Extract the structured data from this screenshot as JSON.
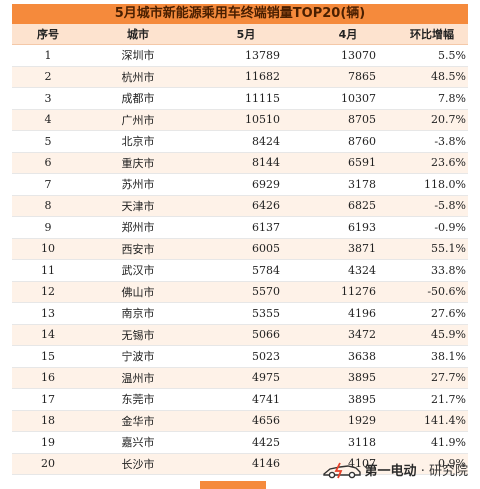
{
  "title": "5月城市新能源乘用车终端销量TOP20(辆)",
  "headers": [
    "序号",
    "城市",
    "5月",
    "4月",
    "环比增幅"
  ],
  "rows": [
    {
      "rank": "1",
      "city": "深圳市",
      "may": "13789",
      "apr": "13070",
      "change": "5.5%"
    },
    {
      "rank": "2",
      "city": "杭州市",
      "may": "11682",
      "apr": "7865",
      "change": "48.5%"
    },
    {
      "rank": "3",
      "city": "成都市",
      "may": "11115",
      "apr": "10307",
      "change": "7.8%"
    },
    {
      "rank": "4",
      "city": "广州市",
      "may": "10510",
      "apr": "8705",
      "change": "20.7%"
    },
    {
      "rank": "5",
      "city": "北京市",
      "may": "8424",
      "apr": "8760",
      "change": "-3.8%"
    },
    {
      "rank": "6",
      "city": "重庆市",
      "may": "8144",
      "apr": "6591",
      "change": "23.6%"
    },
    {
      "rank": "7",
      "city": "苏州市",
      "may": "6929",
      "apr": "3178",
      "change": "118.0%"
    },
    {
      "rank": "8",
      "city": "天津市",
      "may": "6426",
      "apr": "6825",
      "change": "-5.8%"
    },
    {
      "rank": "9",
      "city": "郑州市",
      "may": "6137",
      "apr": "6193",
      "change": "-0.9%"
    },
    {
      "rank": "10",
      "city": "西安市",
      "may": "6005",
      "apr": "3871",
      "change": "55.1%"
    },
    {
      "rank": "11",
      "city": "武汉市",
      "may": "5784",
      "apr": "4324",
      "change": "33.8%"
    },
    {
      "rank": "12",
      "city": "佛山市",
      "may": "5570",
      "apr": "11276",
      "change": "-50.6%"
    },
    {
      "rank": "13",
      "city": "南京市",
      "may": "5355",
      "apr": "4196",
      "change": "27.6%"
    },
    {
      "rank": "14",
      "city": "无锡市",
      "may": "5066",
      "apr": "3472",
      "change": "45.9%"
    },
    {
      "rank": "15",
      "city": "宁波市",
      "may": "5023",
      "apr": "3638",
      "change": "38.1%"
    },
    {
      "rank": "16",
      "city": "温州市",
      "may": "4975",
      "apr": "3895",
      "change": "27.7%"
    },
    {
      "rank": "17",
      "city": "东莞市",
      "may": "4741",
      "apr": "3895",
      "change": "21.7%"
    },
    {
      "rank": "18",
      "city": "金华市",
      "may": "4656",
      "apr": "1929",
      "change": "141.4%"
    },
    {
      "rank": "19",
      "city": "嘉兴市",
      "may": "4425",
      "apr": "3118",
      "change": "41.9%"
    },
    {
      "rank": "20",
      "city": "长沙市",
      "may": "4146",
      "apr": "4107",
      "change": "0.9%"
    }
  ],
  "logo": {
    "brand": "第一电动",
    "separator": "·",
    "suffix": "研究院",
    "icon": "car-logo-icon"
  },
  "colors": {
    "accent": "#F58A3C",
    "header_bg": "#FDE3CF",
    "stripe": "#FEF2E8"
  }
}
